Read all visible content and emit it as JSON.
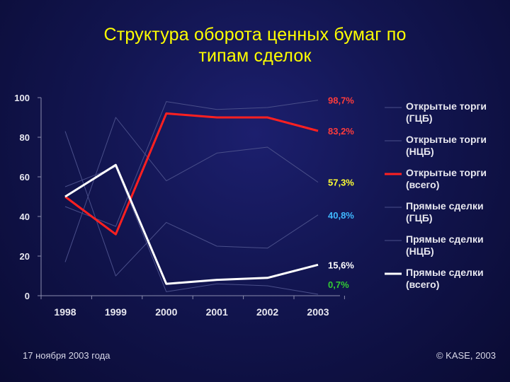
{
  "title_line1": "Структура оборота ценных бумаг по",
  "title_line2": "типам сделок",
  "footer": {
    "date": "17 ноября 2003 года",
    "copyright": "© KASE, 2003"
  },
  "chart_data": {
    "type": "line",
    "title": "Структура оборота ценных бумаг по типам сделок",
    "categories": [
      "1998",
      "1999",
      "2000",
      "2001",
      "2002",
      "2003"
    ],
    "ylim": [
      0,
      100
    ],
    "yticks": [
      0,
      20,
      40,
      60,
      80,
      100
    ],
    "series": [
      {
        "name": "Открытые торги (ГЦБ)",
        "label_lines": [
          "Открытые торги",
          "(ГЦБ)"
        ],
        "values": [
          45,
          35,
          98,
          94,
          95,
          98.7
        ],
        "color": "#4a4f8a",
        "width": 1,
        "end_label": "98,7%",
        "end_label_color": "#ff3b3b"
      },
      {
        "name": "Открытые торги (НЦБ)",
        "label_lines": [
          "Открытые торги",
          "(НЦБ)"
        ],
        "values": [
          17,
          90,
          58,
          72,
          75,
          57.3
        ],
        "color": "#4a4f8a",
        "width": 1,
        "end_label": "57,3%",
        "end_label_color": "#ffff33"
      },
      {
        "name": "Открытые торги (всего)",
        "label_lines": [
          "Открытые торги",
          "(всего)"
        ],
        "values": [
          50,
          31,
          92,
          90,
          90,
          83.2
        ],
        "color": "#ff2020",
        "width": 3,
        "end_label": "83,2%",
        "end_label_color": "#ff3b3b"
      },
      {
        "name": "Прямые сделки (ГЦБ)",
        "label_lines": [
          "Прямые сделки",
          "(ГЦБ)"
        ],
        "values": [
          55,
          65,
          2,
          6,
          5,
          0.7
        ],
        "color": "#4a4f8a",
        "width": 1,
        "end_label": "0,7%",
        "end_label_color": "#33cc33"
      },
      {
        "name": "Прямые сделки (НЦБ)",
        "label_lines": [
          "Прямые сделки",
          "(НЦБ)"
        ],
        "values": [
          83,
          10,
          37,
          25,
          24,
          40.8
        ],
        "color": "#4a4f8a",
        "width": 1,
        "end_label": "40,8%",
        "end_label_color": "#3fb8ff"
      },
      {
        "name": "Прямые сделки (всего)",
        "label_lines": [
          "Прямые сделки",
          "(всего)"
        ],
        "values": [
          50,
          66,
          6,
          8,
          9,
          15.6
        ],
        "color": "#ffffff",
        "width": 3,
        "end_label": "15,6%",
        "end_label_color": "#ffffff"
      }
    ]
  }
}
